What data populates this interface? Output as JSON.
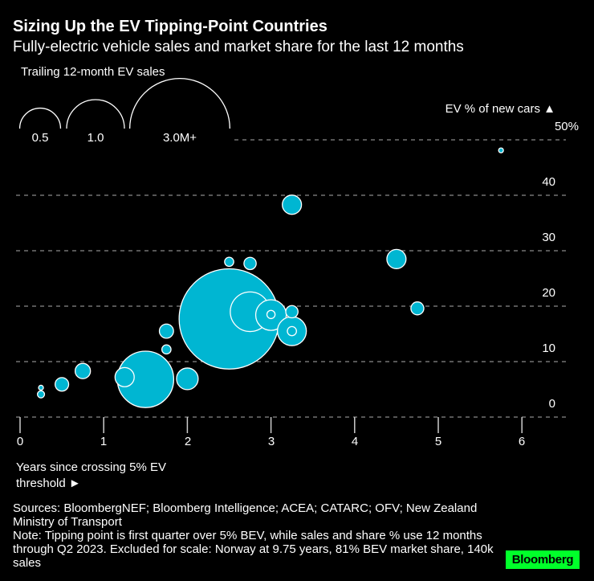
{
  "colors": {
    "background": "#000000",
    "bubble": "#00b6d2",
    "bubble_stroke": "#ffffff",
    "grid": "#8a8a8a",
    "logo_bg": "#00ff2a"
  },
  "chart_data": {
    "type": "scatter",
    "title": "Sizing Up the EV Tipping-Point Countries",
    "subtitle": "Fully-electric vehicle sales and market share for the last 12 months",
    "xlabel": "Years since crossing 5% EV threshold ►",
    "ylabel": "EV % of new cars ▲",
    "xlim": [
      0,
      6.5
    ],
    "ylim": [
      0,
      50
    ],
    "x_ticks": [
      "0",
      "1",
      "2",
      "3",
      "4",
      "5",
      "6"
    ],
    "y_ticks": [
      "0",
      "10",
      "20",
      "30",
      "40",
      "50%"
    ],
    "grid": "horizontal dashed",
    "size_legend": {
      "title": "Trailing 12-month EV sales",
      "entries": [
        {
          "value": 0.5,
          "label": "0.5"
        },
        {
          "value": 1.0,
          "label": "1.0"
        },
        {
          "value": 3.0,
          "label": "3.0M+"
        }
      ]
    },
    "size_unit": "millions of sales",
    "points": [
      {
        "x": 2.5,
        "y": 17.7,
        "sales": 3.0
      },
      {
        "x": 1.5,
        "y": 6.8,
        "sales": 0.95
      },
      {
        "x": 2.75,
        "y": 19.0,
        "sales": 0.47
      },
      {
        "x": 3.0,
        "y": 18.4,
        "sales": 0.28
      },
      {
        "x": 3.25,
        "y": 15.5,
        "sales": 0.25
      },
      {
        "x": 2.0,
        "y": 6.9,
        "sales": 0.14
      },
      {
        "x": 1.25,
        "y": 7.2,
        "sales": 0.11
      },
      {
        "x": 3.25,
        "y": 38.3,
        "sales": 0.11
      },
      {
        "x": 4.5,
        "y": 28.5,
        "sales": 0.11
      },
      {
        "x": 0.75,
        "y": 8.3,
        "sales": 0.07
      },
      {
        "x": 1.75,
        "y": 15.5,
        "sales": 0.06
      },
      {
        "x": 0.5,
        "y": 5.9,
        "sales": 0.055
      },
      {
        "x": 4.75,
        "y": 19.6,
        "sales": 0.05
      },
      {
        "x": 2.75,
        "y": 27.7,
        "sales": 0.045
      },
      {
        "x": 3.25,
        "y": 19.0,
        "sales": 0.045
      },
      {
        "x": 2.5,
        "y": 28.0,
        "sales": 0.025
      },
      {
        "x": 1.75,
        "y": 12.2,
        "sales": 0.025
      },
      {
        "x": 3.0,
        "y": 18.5,
        "sales": 0.02
      },
      {
        "x": 3.25,
        "y": 15.5,
        "sales": 0.025
      },
      {
        "x": 0.25,
        "y": 4.1,
        "sales": 0.015
      },
      {
        "x": 0.25,
        "y": 5.3,
        "sales": 0.007
      },
      {
        "x": 5.75,
        "y": 48.1,
        "sales": 0.007
      }
    ]
  },
  "sources": "Sources: BloombergNEF; Bloomberg Intelligence; ACEA; CATARC; OFV; New Zealand Ministry of Transport",
  "note": "Note: Tipping point is first quarter over 5% BEV, while sales and share % use 12 months through Q2 2023. Excluded for scale: Norway at 9.75 years, 81% BEV market share, 140k sales",
  "logo": "Bloomberg"
}
